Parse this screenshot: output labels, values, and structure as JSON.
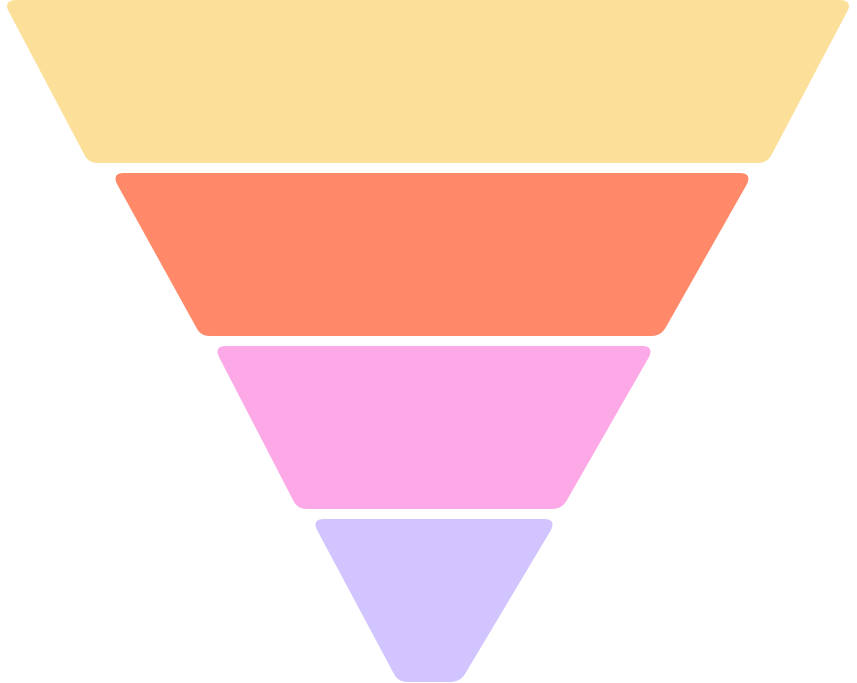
{
  "funnel": {
    "stages": [
      {
        "color": "#FCDF98"
      },
      {
        "color": "#FF8968"
      },
      {
        "color": "#FDA9E7"
      },
      {
        "color": "#D2C5FF"
      }
    ]
  }
}
